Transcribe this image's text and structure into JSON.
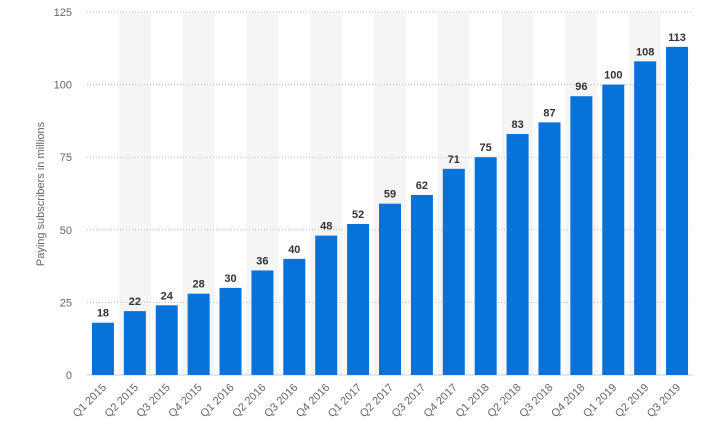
{
  "chart_data": {
    "type": "bar",
    "title": "",
    "xlabel": "",
    "ylabel": "Paying subscribers in millions",
    "ylim": [
      0,
      125
    ],
    "yticks": [
      0,
      25,
      50,
      75,
      100,
      125
    ],
    "grid": "horizontal-dotted",
    "colors": {
      "bar": "#0773d9",
      "band": "#f5f5f5",
      "grid": "#bbbbbb",
      "tick_text": "#666666",
      "label_text": "#333333"
    },
    "categories": [
      "Q1 2015",
      "Q2 2015",
      "Q3 2015",
      "Q4 2015",
      "Q1 2016",
      "Q2 2016",
      "Q3 2016",
      "Q4 2016",
      "Q1 2017",
      "Q2 2017",
      "Q3 2017",
      "Q4 2017",
      "Q1 2018",
      "Q2 2018",
      "Q3 2018",
      "Q4 2018",
      "Q1 2019",
      "Q2 2019",
      "Q3 2019"
    ],
    "values": [
      18,
      22,
      24,
      28,
      30,
      36,
      40,
      48,
      52,
      59,
      62,
      71,
      75,
      83,
      87,
      96,
      100,
      108,
      113
    ],
    "data_labels": [
      "18",
      "22",
      "24",
      "28",
      "30",
      "36",
      "40",
      "48",
      "52",
      "59",
      "62",
      "71",
      "75",
      "83",
      "87",
      "96",
      "100",
      "108",
      "113"
    ]
  }
}
